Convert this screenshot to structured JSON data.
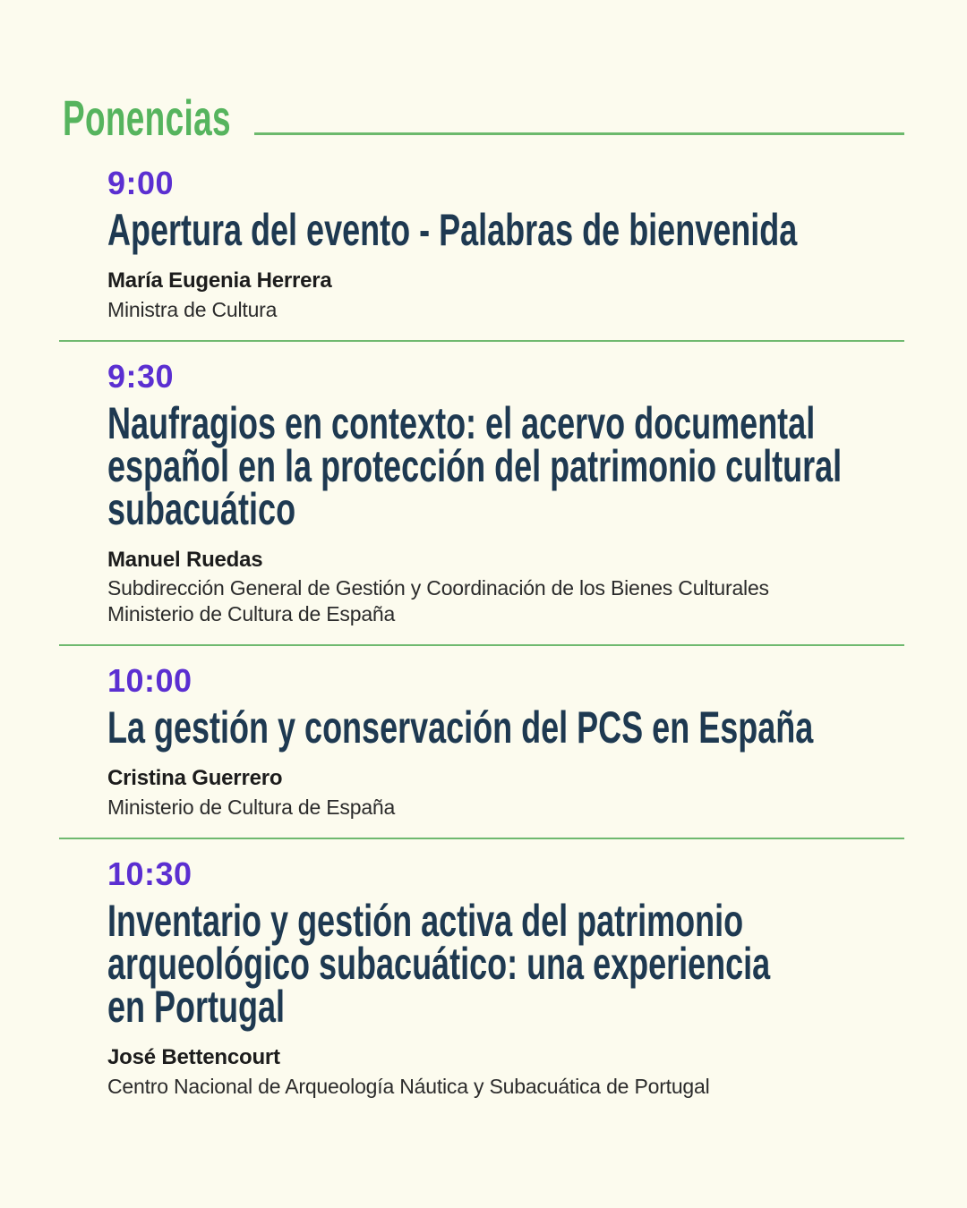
{
  "header": {
    "title": "Ponencias"
  },
  "colors": {
    "green_accent": "#5cb565",
    "purple_time": "#5b2fd1",
    "navy_title": "#1e3951",
    "background": "#fcfbee"
  },
  "sessions": [
    {
      "time": "9:00",
      "title": "Apertura del evento - Palabras de bienvenida",
      "speaker": "María Eugenia Herrera",
      "affiliation": [
        "Ministra de Cultura"
      ]
    },
    {
      "time": "9:30",
      "title": "Naufragios en contexto: el acervo documental\nespañol en la protección del patrimonio cultural\nsubacuático",
      "speaker": "Manuel Ruedas",
      "affiliation": [
        "Subdirección General de Gestión y Coordinación de los Bienes Culturales",
        "Ministerio de Cultura de España"
      ]
    },
    {
      "time": "10:00",
      "title": "La gestión y conservación del PCS en España",
      "speaker": "Cristina Guerrero",
      "affiliation": [
        "Ministerio de Cultura de España"
      ]
    },
    {
      "time": "10:30",
      "title": "Inventario y gestión activa del patrimonio\narqueológico subacuático: una experiencia\nen Portugal",
      "speaker": "José Bettencourt",
      "affiliation": [
        "Centro Nacional de Arqueología Náutica y Subacuática de Portugal"
      ]
    }
  ]
}
